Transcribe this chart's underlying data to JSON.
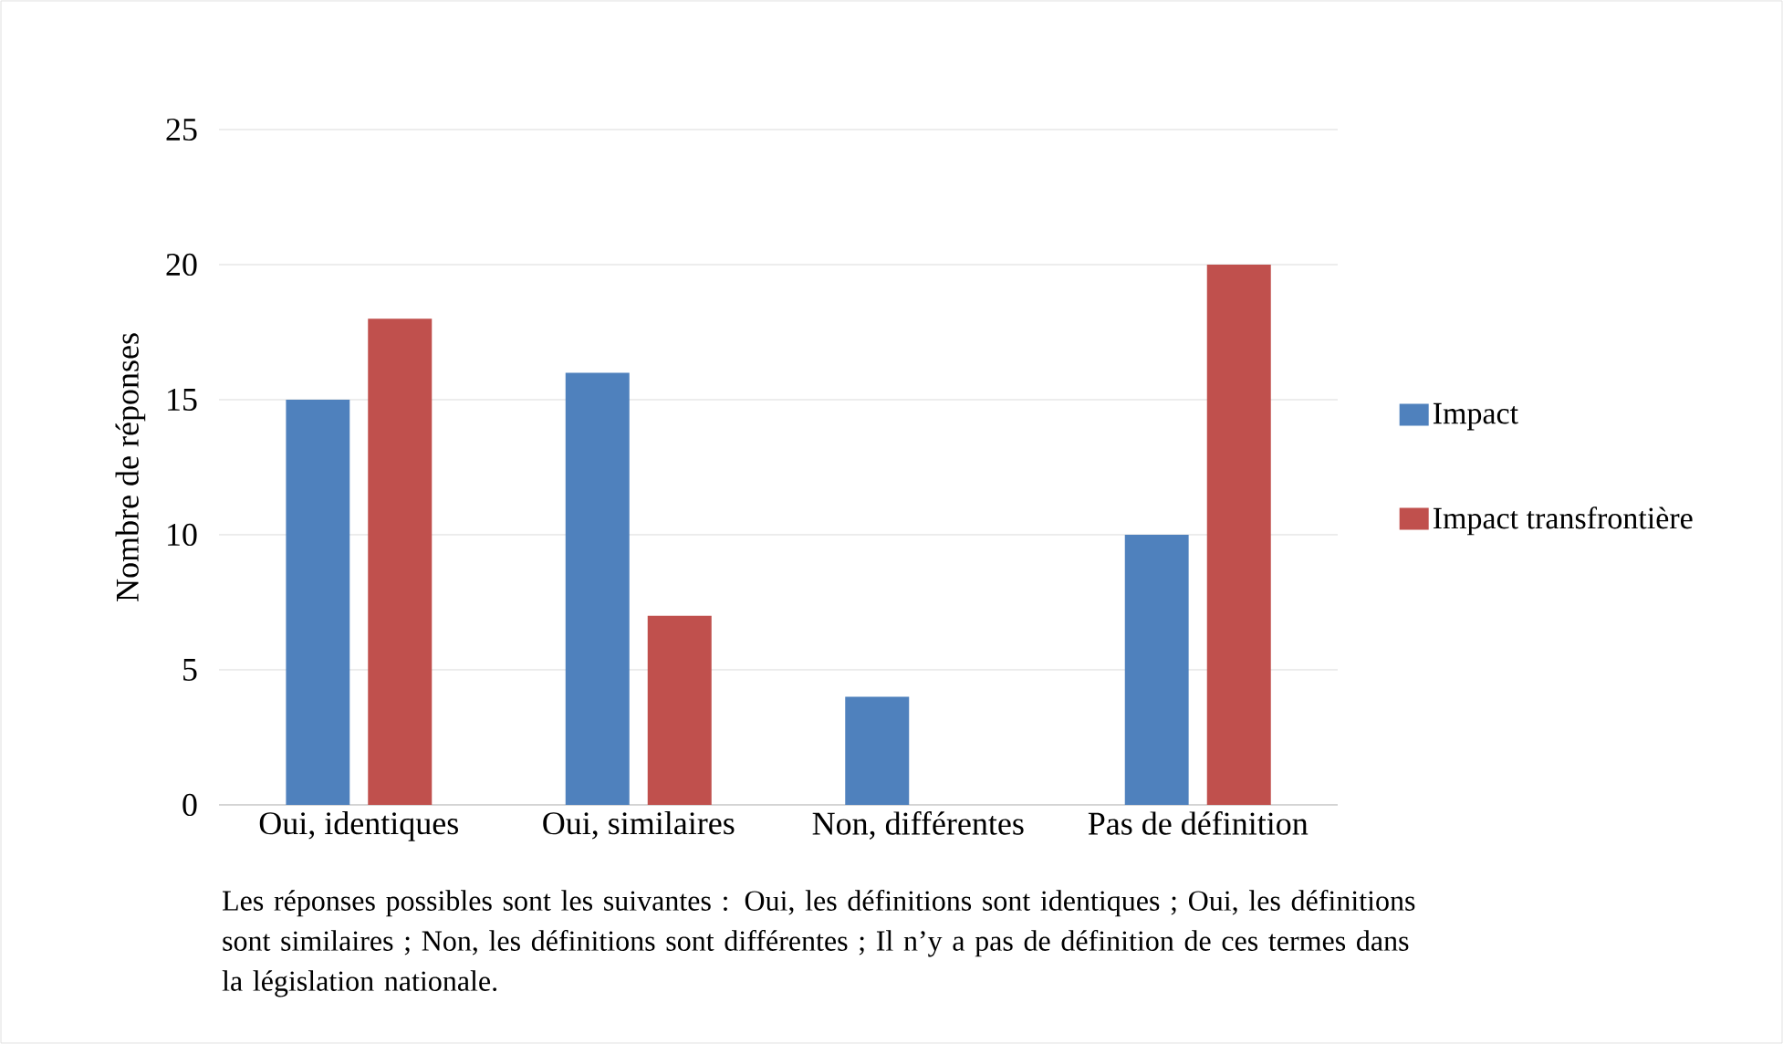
{
  "chart_data": {
    "type": "bar",
    "ylabel": "Nombre de réponses",
    "categories": [
      "Oui, identiques",
      "Oui, similaires",
      "Non, différentes",
      "Pas de définition"
    ],
    "series": [
      {
        "name": "Impact",
        "color": "#4f81bd",
        "values": [
          15,
          16,
          4,
          10
        ]
      },
      {
        "name": "Impact transfrontière",
        "color": "#c0504d",
        "values": [
          18,
          7,
          0,
          20
        ]
      }
    ],
    "ylim": [
      0,
      25
    ],
    "yticks": [
      0,
      5,
      10,
      15,
      20,
      25
    ],
    "grid": "y",
    "legend": "right",
    "annotations": [
      "Les réponses possibles sont les suivantes : Oui, les définitions sont identiques ; Oui, les définitions sont similaires ; Non, les définitions sont différentes ; Il n’y a pas de définition de ces termes dans la législation nationale."
    ]
  }
}
